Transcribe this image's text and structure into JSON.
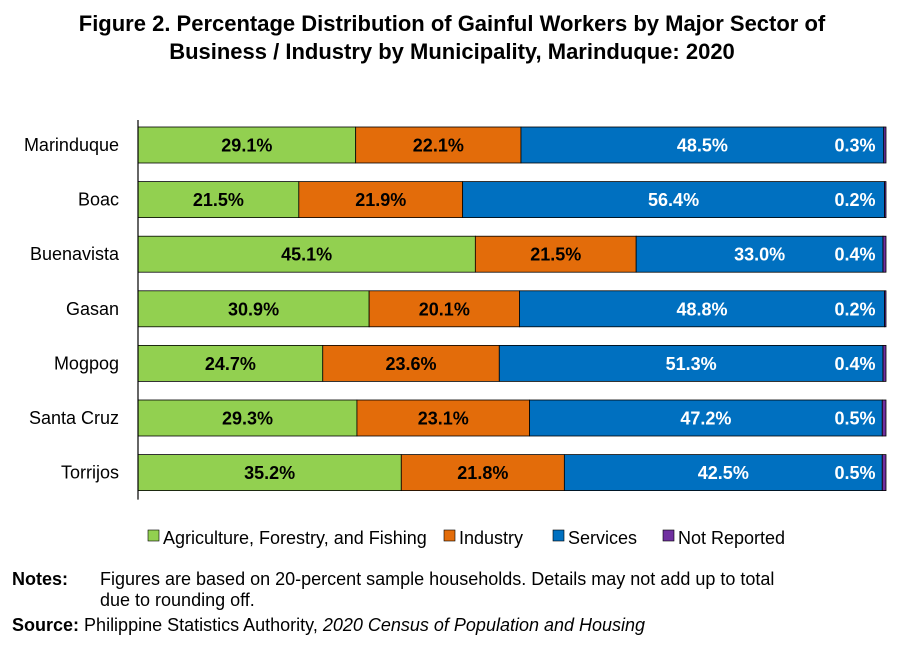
{
  "title_line1": "Figure 2. Percentage Distribution of Gainful Workers by Major Sector of",
  "title_line2": "Business / Industry by Municipality, Marinduque: 2020",
  "chart_data": {
    "type": "bar",
    "orientation": "horizontal",
    "stacked": true,
    "normalized_percent": true,
    "categories": [
      "Marinduque",
      "Boac",
      "Buenavista",
      "Gasan",
      "Mogpog",
      "Santa Cruz",
      "Torrijos"
    ],
    "series": [
      {
        "name": "Agriculture, Forestry, and Fishing",
        "color": "#92D050",
        "label_color": "#000000",
        "values": [
          29.1,
          21.5,
          45.1,
          30.9,
          24.7,
          29.3,
          35.2
        ]
      },
      {
        "name": "Industry",
        "color": "#E36C0A",
        "label_color": "#000000",
        "values": [
          22.1,
          21.9,
          21.5,
          20.1,
          23.6,
          23.1,
          21.8
        ]
      },
      {
        "name": "Services",
        "color": "#0070C0",
        "label_color": "#FFFFFF",
        "values": [
          48.5,
          56.4,
          33.0,
          48.8,
          51.3,
          47.2,
          42.5
        ]
      },
      {
        "name": "Not Reported",
        "color": "#7030A0",
        "label_color": "#FFFFFF",
        "values": [
          0.3,
          0.2,
          0.4,
          0.2,
          0.4,
          0.5,
          0.5
        ]
      }
    ],
    "value_suffix": "%",
    "legend_position": "bottom",
    "grid": false
  },
  "notes_label": "Notes:",
  "notes_line1": "Figures are based on 20-percent sample households. Details may not add up to total",
  "notes_line2": "due to rounding off.",
  "source_label": "Source:",
  "source_text": "Philippine Statistics Authority, ",
  "source_italic": "2020 Census of Population and Housing"
}
